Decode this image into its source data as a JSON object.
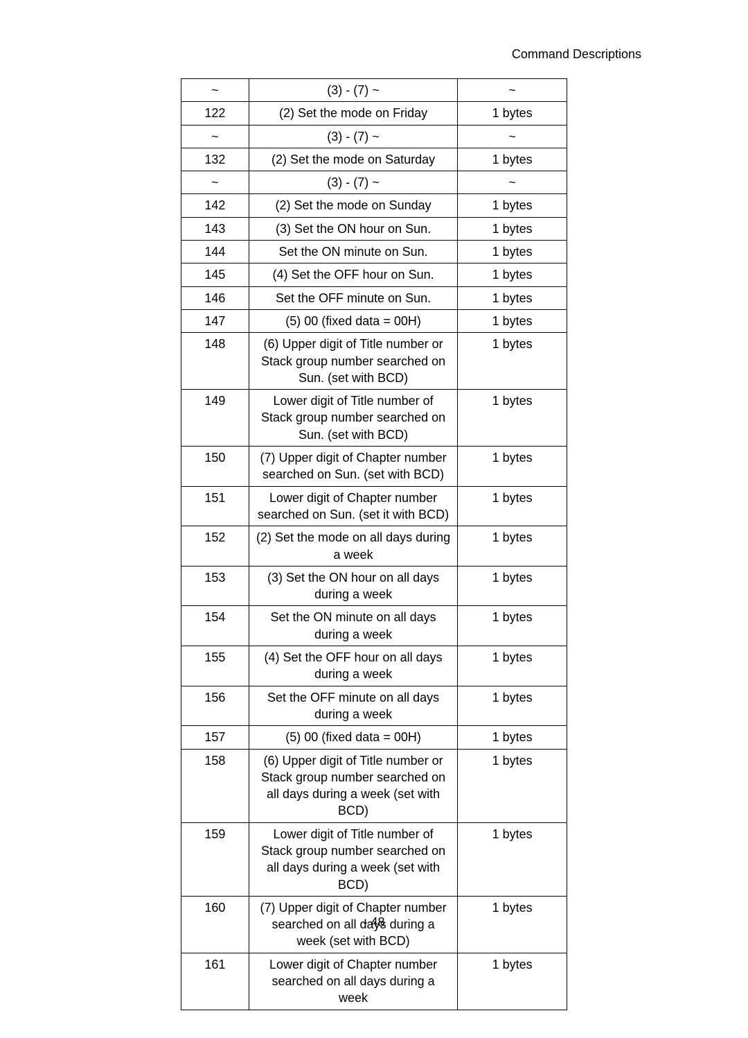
{
  "header": {
    "title": "Command Descriptions"
  },
  "table": {
    "rows": [
      {
        "c1": "~",
        "c2": "(3) - (7) ~",
        "c3": "~"
      },
      {
        "c1": "122",
        "c2": "(2) Set the mode on Friday",
        "c3": "1 bytes"
      },
      {
        "c1": "~",
        "c2": "(3) - (7) ~",
        "c3": "~"
      },
      {
        "c1": "132",
        "c2": "(2) Set the mode on Saturday",
        "c3": "1 bytes"
      },
      {
        "c1": "~",
        "c2": "(3) - (7) ~",
        "c3": "~"
      },
      {
        "c1": "142",
        "c2": "(2) Set the mode on Sunday",
        "c3": "1 bytes"
      },
      {
        "c1": "143",
        "c2": "(3) Set the ON hour on Sun.",
        "c3": "1 bytes"
      },
      {
        "c1": "144",
        "c2": "Set the ON minute on Sun.",
        "c3": "1 bytes"
      },
      {
        "c1": "145",
        "c2": "(4) Set the OFF hour on Sun.",
        "c3": "1 bytes"
      },
      {
        "c1": "146",
        "c2": "Set the OFF minute on Sun.",
        "c3": "1 bytes"
      },
      {
        "c1": "147",
        "c2": "(5) 00 (fixed data = 00H)",
        "c3": "1 bytes"
      },
      {
        "c1": "148",
        "c2": "(6) Upper digit of Title number or Stack group number searched on Sun. (set with BCD)",
        "c3": "1 bytes"
      },
      {
        "c1": "149",
        "c2": "Lower digit of Title number of Stack group number searched on Sun. (set with BCD)",
        "c3": "1 bytes"
      },
      {
        "c1": "150",
        "c2": "(7) Upper digit of Chapter number searched on Sun. (set with BCD)",
        "c3": "1 bytes"
      },
      {
        "c1": "151",
        "c2": "Lower digit of Chapter number searched on Sun. (set it with BCD)",
        "c3": "1 bytes"
      },
      {
        "c1": "152",
        "c2": "(2) Set the mode on all days during a week",
        "c3": "1 bytes"
      },
      {
        "c1": "153",
        "c2": "(3) Set the ON hour on all days during a week",
        "c3": "1 bytes"
      },
      {
        "c1": "154",
        "c2": "Set the ON minute on all days during a week",
        "c3": "1 bytes"
      },
      {
        "c1": "155",
        "c2": "(4) Set the OFF hour on all days during a week",
        "c3": "1 bytes"
      },
      {
        "c1": "156",
        "c2": "Set the OFF minute on all days during a week",
        "c3": "1 bytes"
      },
      {
        "c1": "157",
        "c2": "(5) 00 (fixed data = 00H)",
        "c3": "1 bytes"
      },
      {
        "c1": "158",
        "c2": "(6) Upper digit of Title number or Stack group number searched on all days during a week (set with BCD)",
        "c3": "1 bytes"
      },
      {
        "c1": "159",
        "c2": "Lower digit of Title number of Stack group number searched on all days during a week (set with BCD)",
        "c3": "1 bytes"
      },
      {
        "c1": "160",
        "c2": "(7) Upper digit of Chapter number searched on all days during a week (set with BCD)",
        "c3": "1 bytes"
      },
      {
        "c1": "161",
        "c2": "Lower digit of Chapter number searched on all days during a week",
        "c3": "1 bytes"
      }
    ]
  },
  "footer": {
    "page_number": "- 48"
  }
}
